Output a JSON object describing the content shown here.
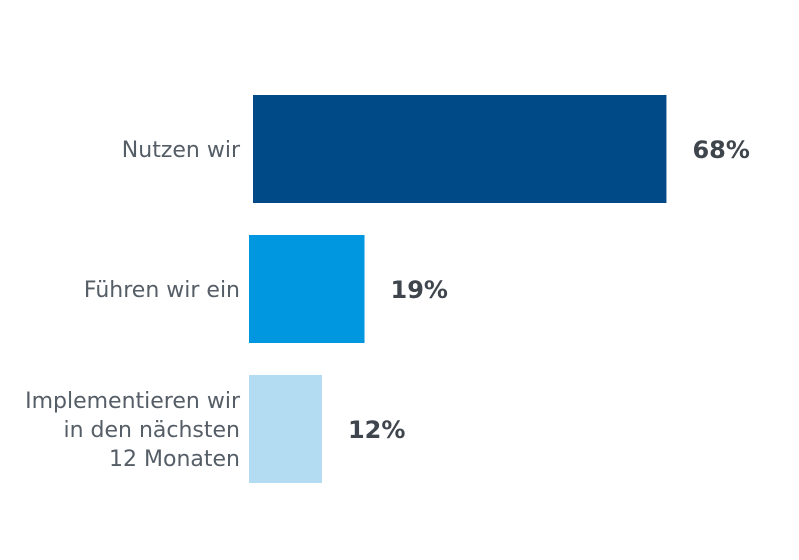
{
  "chart_data": {
    "type": "bar",
    "orientation": "horizontal",
    "title": "",
    "xlabel": "",
    "ylabel": "",
    "xlim": [
      0,
      100
    ],
    "grid": false,
    "legend": "none",
    "categories": [
      [
        "Nutzen wir"
      ],
      [
        "Führen wir ein"
      ],
      [
        "Implementieren wir",
        "in den nächsten",
        "12 Monaten"
      ]
    ],
    "values": [
      68,
      19,
      12
    ],
    "value_labels": [
      "68%",
      "19%",
      "12%"
    ],
    "colors": [
      "#004b87",
      "#0096e0",
      "#b3dcf2"
    ]
  }
}
